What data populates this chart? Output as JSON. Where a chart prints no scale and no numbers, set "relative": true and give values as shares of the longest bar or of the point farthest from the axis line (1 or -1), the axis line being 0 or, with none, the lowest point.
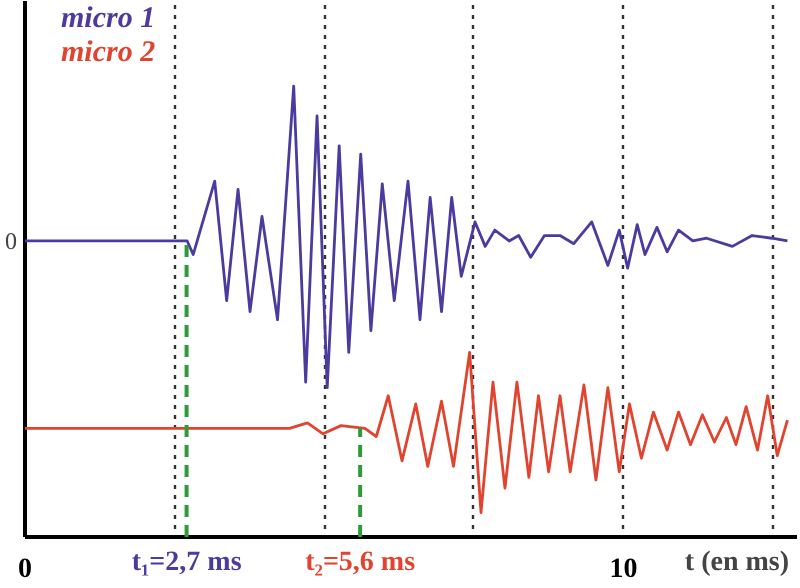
{
  "chart_data": {
    "type": "line",
    "relative": true,
    "xlabel": "t (en ms)",
    "xlim": [
      0,
      12.9
    ],
    "xticks": [
      0,
      {
        "value": 2.5,
        "label": null
      },
      {
        "value": 5,
        "label": null
      },
      {
        "value": 7.5,
        "label": null
      },
      10,
      {
        "value": 12.5,
        "label": null
      }
    ],
    "grid": "x",
    "legend": "top left",
    "line_style": "solid",
    "series": [
      {
        "name": "micro 1",
        "color": "#4a3c9e",
        "x": [
          0,
          2.71,
          2.81,
          3.17,
          3.37,
          3.56,
          3.76,
          3.96,
          4.22,
          4.49,
          4.69,
          4.88,
          5.05,
          5.25,
          5.41,
          5.61,
          5.78,
          5.97,
          6.17,
          6.4,
          6.6,
          6.77,
          6.96,
          7.13,
          7.29,
          7.52,
          7.69,
          7.85,
          8.09,
          8.25,
          8.45,
          8.68,
          8.94,
          9.17,
          9.47,
          9.74,
          9.93,
          10.07,
          10.23,
          10.36,
          10.56,
          10.73,
          10.92,
          11.16,
          11.39,
          11.82,
          12.15,
          12.48,
          12.74
        ],
        "values": [
          0,
          0,
          -0.05,
          0.22,
          -0.22,
          0.19,
          -0.26,
          0.09,
          -0.29,
          0.57,
          -0.52,
          0.46,
          -0.54,
          0.35,
          -0.41,
          0.32,
          -0.33,
          0.21,
          -0.22,
          0.22,
          -0.29,
          0.16,
          -0.26,
          0.16,
          -0.13,
          0.07,
          -0.02,
          0.04,
          0,
          0.02,
          -0.06,
          0.02,
          0.02,
          -0.01,
          0.07,
          -0.09,
          0.04,
          -0.1,
          0.06,
          -0.05,
          0.05,
          -0.04,
          0.04,
          0,
          0.01,
          -0.02,
          0.02,
          0.01,
          0
        ]
      },
      {
        "name": "micro 2",
        "color": "#e0442e",
        "x": [
          0,
          4.42,
          4.72,
          4.98,
          5.28,
          5.68,
          5.87,
          6.07,
          6.3,
          6.53,
          6.73,
          6.96,
          7.16,
          7.43,
          7.62,
          7.82,
          8.02,
          8.22,
          8.42,
          8.58,
          8.75,
          8.94,
          9.11,
          9.34,
          9.54,
          9.74,
          9.93,
          10.1,
          10.3,
          10.5,
          10.73,
          10.92,
          11.12,
          11.32,
          11.52,
          11.72,
          11.88,
          12.05,
          12.24,
          12.41,
          12.57,
          12.74
        ],
        "values": [
          -0.69,
          -0.69,
          -0.67,
          -0.71,
          -0.68,
          -0.69,
          -0.72,
          -0.57,
          -0.81,
          -0.6,
          -0.83,
          -0.59,
          -0.83,
          -0.41,
          -1.0,
          -0.52,
          -0.91,
          -0.52,
          -0.87,
          -0.57,
          -0.85,
          -0.57,
          -0.85,
          -0.53,
          -0.88,
          -0.54,
          -0.85,
          -0.6,
          -0.8,
          -0.63,
          -0.77,
          -0.63,
          -0.75,
          -0.64,
          -0.74,
          -0.65,
          -0.75,
          -0.61,
          -0.77,
          -0.57,
          -0.79,
          -0.66
        ]
      }
    ],
    "ref_lines": [
      {
        "axis": "x",
        "value": 2.7,
        "label": "t₁=2,7 ms",
        "color": "#2e9a3c",
        "line_style": "dashed"
      },
      {
        "axis": "x",
        "value": 5.6,
        "label": "t₂=5,6 ms",
        "color": "#2e9a3c",
        "line_style": "dashed"
      }
    ],
    "annotations": [
      "0"
    ]
  }
}
